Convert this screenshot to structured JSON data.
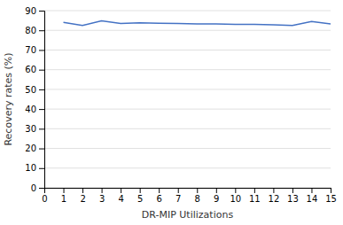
{
  "chart_data": {
    "type": "line",
    "x": [
      1,
      2,
      3,
      4,
      5,
      6,
      7,
      8,
      9,
      10,
      11,
      12,
      13,
      14,
      15
    ],
    "values": [
      84.0,
      82.5,
      84.8,
      83.5,
      83.8,
      83.6,
      83.5,
      83.2,
      83.2,
      83.0,
      83.0,
      82.8,
      82.5,
      84.5,
      83.2
    ],
    "color": "#4472c4",
    "xlabel": "DR-MIP Utilizations",
    "ylabel": "Recovery rates (%)",
    "xlim": [
      0,
      15
    ],
    "ylim": [
      0,
      90
    ],
    "xticks": [
      0,
      1,
      2,
      3,
      4,
      5,
      6,
      7,
      8,
      9,
      10,
      11,
      12,
      13,
      14,
      15
    ],
    "yticks": [
      0,
      10,
      20,
      30,
      40,
      50,
      60,
      70,
      80,
      90
    ],
    "grid": true
  }
}
